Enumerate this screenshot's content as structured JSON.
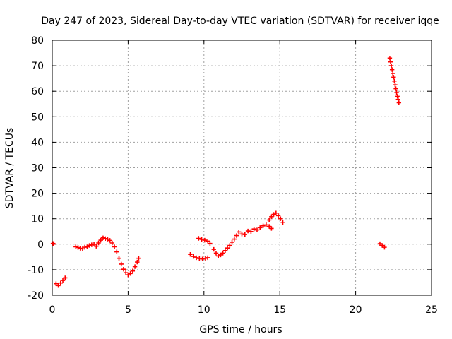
{
  "chart_data": {
    "type": "scatter",
    "title": "Day 247 of 2023, Sidereal Day-to-day VTEC variation (SDTVAR) for receiver iqqe",
    "xlabel": "GPS time / hours",
    "ylabel": "SDTVAR / TECUs",
    "xlim": [
      0,
      25
    ],
    "ylim": [
      -20,
      80
    ],
    "xticks": [
      0,
      5,
      10,
      15,
      20,
      25
    ],
    "yticks": [
      -20,
      -10,
      0,
      10,
      20,
      30,
      40,
      50,
      60,
      70,
      80
    ],
    "grid": true,
    "marker": "plus",
    "color": "#ff0000",
    "series": [
      {
        "name": "seg-0",
        "x": [
          0.05,
          0.1
        ],
        "y": [
          0.3,
          0.1
        ]
      },
      {
        "name": "seg-1",
        "x": [
          0.25,
          0.4,
          0.55,
          0.7,
          0.85
        ],
        "y": [
          -15.5,
          -16.2,
          -15.2,
          -14.2,
          -13.2
        ]
      },
      {
        "name": "seg-2",
        "x": [
          1.55,
          1.7,
          1.85,
          2.0,
          2.15,
          2.3,
          2.45,
          2.6,
          2.75,
          2.9,
          3.05,
          3.2,
          3.35,
          3.5,
          3.65,
          3.8,
          3.95,
          4.1,
          4.25,
          4.4,
          4.55,
          4.7,
          4.85,
          5.0,
          5.15,
          5.3,
          5.45,
          5.6,
          5.7
        ],
        "y": [
          -1.0,
          -1.3,
          -1.6,
          -1.8,
          -1.2,
          -1.0,
          -0.5,
          -0.2,
          0.0,
          -0.8,
          0.5,
          1.6,
          2.5,
          2.2,
          2.0,
          1.5,
          0.5,
          -1.0,
          -3.0,
          -5.5,
          -7.8,
          -9.8,
          -11.2,
          -12.0,
          -11.5,
          -10.5,
          -8.8,
          -7.0,
          -5.5
        ]
      },
      {
        "name": "seg-3",
        "x": [
          9.1,
          9.3,
          9.5,
          9.7,
          9.9,
          10.1,
          10.25
        ],
        "y": [
          -4.0,
          -4.8,
          -5.3,
          -5.6,
          -5.8,
          -5.5,
          -5.3
        ]
      },
      {
        "name": "seg-4",
        "x": [
          9.65,
          9.85,
          10.05,
          10.25,
          10.4
        ],
        "y": [
          2.3,
          1.9,
          1.6,
          1.2,
          0.3
        ]
      },
      {
        "name": "seg-5",
        "x": [
          10.65,
          10.8,
          10.95,
          11.1,
          11.25,
          11.4,
          11.55,
          11.7,
          11.85,
          12.0,
          12.15,
          12.3,
          12.5,
          12.7,
          12.9,
          13.1,
          13.3,
          13.5,
          13.7,
          13.9,
          14.1,
          14.3,
          14.45
        ],
        "y": [
          -2.0,
          -3.5,
          -4.6,
          -4.2,
          -3.5,
          -2.5,
          -1.5,
          -0.5,
          0.8,
          2.0,
          3.4,
          4.8,
          4.0,
          3.8,
          5.2,
          5.0,
          6.0,
          5.6,
          6.5,
          7.2,
          7.6,
          7.0,
          6.2
        ]
      },
      {
        "name": "seg-6",
        "x": [
          14.3,
          14.45,
          14.6,
          14.75,
          14.9,
          15.05,
          15.2
        ],
        "y": [
          9.5,
          10.8,
          11.7,
          12.2,
          11.2,
          10.0,
          8.6
        ]
      },
      {
        "name": "seg-7",
        "x": [
          21.6,
          21.75,
          21.9
        ],
        "y": [
          0.2,
          -0.5,
          -1.2
        ]
      },
      {
        "name": "seg-8",
        "x": [
          22.25,
          22.3,
          22.35,
          22.4,
          22.45,
          22.5,
          22.55,
          22.6,
          22.65,
          22.7,
          22.75,
          22.8,
          22.85
        ],
        "y": [
          73.0,
          71.5,
          70.0,
          68.5,
          67.0,
          65.5,
          64.0,
          62.5,
          61.0,
          59.5,
          58.0,
          56.8,
          55.5
        ]
      }
    ]
  }
}
